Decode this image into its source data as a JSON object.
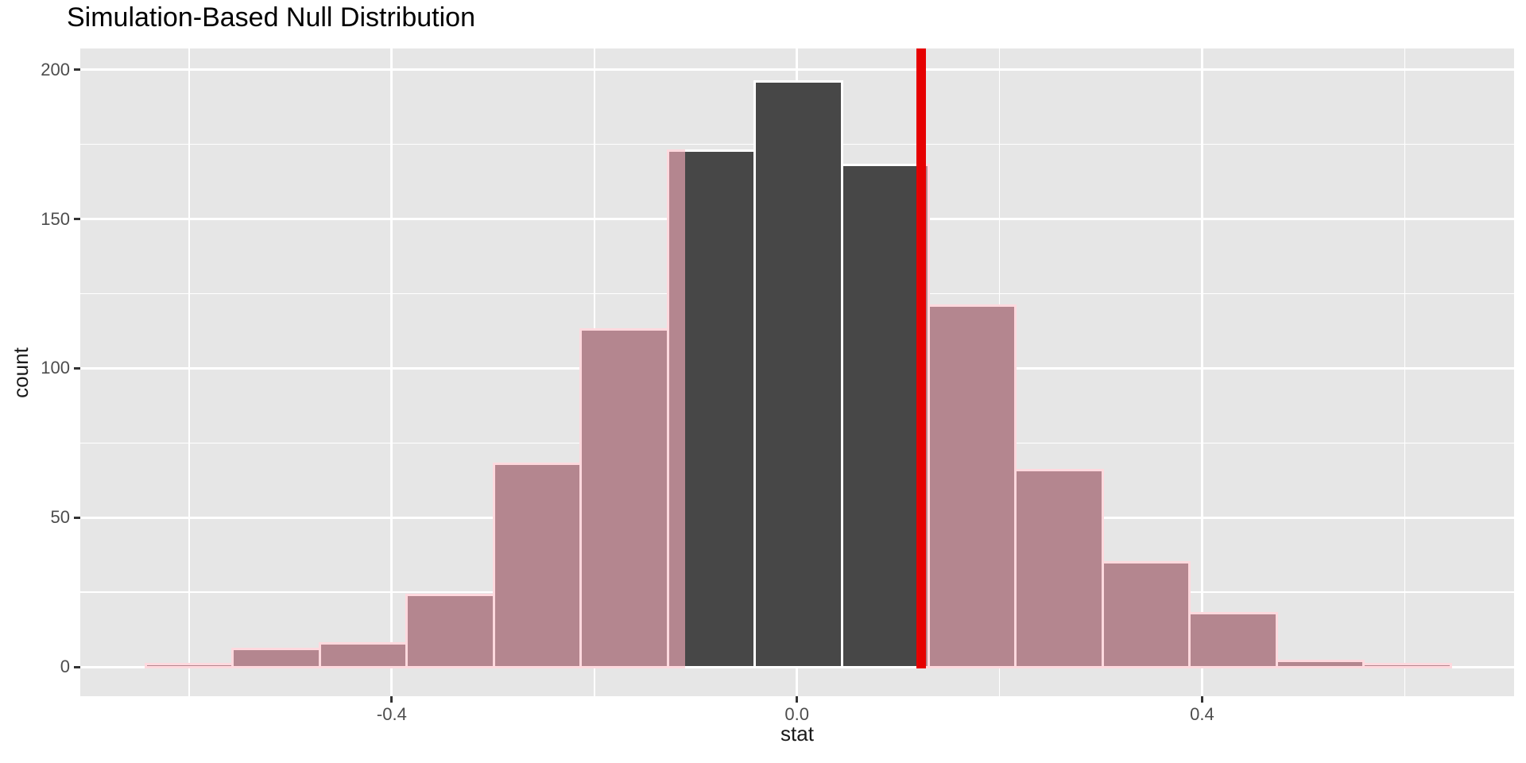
{
  "title": "Simulation-Based Null Distribution",
  "chart_data": {
    "type": "bar",
    "subtype": "histogram",
    "title": "Simulation-Based Null Distribution",
    "xlabel": "stat",
    "ylabel": "count",
    "n_reps_total": 1000,
    "n_bins": 15,
    "bin_edges": [
      -0.643,
      -0.5571,
      -0.4712,
      -0.3853,
      -0.2994,
      -0.2135,
      -0.1276,
      -0.0417,
      0.0442,
      0.1301,
      0.216,
      0.3019,
      0.3878,
      0.4737,
      0.5596,
      0.6455
    ],
    "counts": [
      1,
      6,
      8,
      24,
      68,
      113,
      173,
      196,
      168,
      121,
      66,
      35,
      18,
      2,
      1
    ],
    "shading": {
      "direction": "two-sided",
      "left_boundary": -0.1105,
      "right_boundary": 0.1227,
      "inside_is_null_fill": true
    },
    "observed_stat_line": 0.1227,
    "x_ticks": [
      -0.4,
      0.0,
      0.4
    ],
    "x_tick_labels": [
      "-0.4",
      "0.0",
      "0.4"
    ],
    "x_minor_gridlines": [
      -0.6,
      -0.2,
      0.2,
      0.6
    ],
    "y_ticks": [
      0,
      50,
      100,
      150,
      200
    ],
    "y_tick_labels": [
      "0",
      "50",
      "100",
      "150",
      "200"
    ],
    "y_minor_gridlines": [
      25,
      75,
      125,
      175
    ],
    "x_range": [
      -0.7075,
      0.708
    ],
    "y_range": [
      -9.8,
      207.1
    ],
    "grid": "on",
    "legend": "none",
    "colors": {
      "panel_background": "#E6E6E6",
      "gridline": "#FFFFFF",
      "null_bar_fill": "#474747",
      "null_bar_border": "#FFFFFF",
      "shaded_bar_fill": "#B4868F",
      "shaded_bar_border": "#FFD9DE",
      "observed_line": "#E60000",
      "tick_text": "#4D4D4D",
      "title_text": "#000000"
    }
  }
}
